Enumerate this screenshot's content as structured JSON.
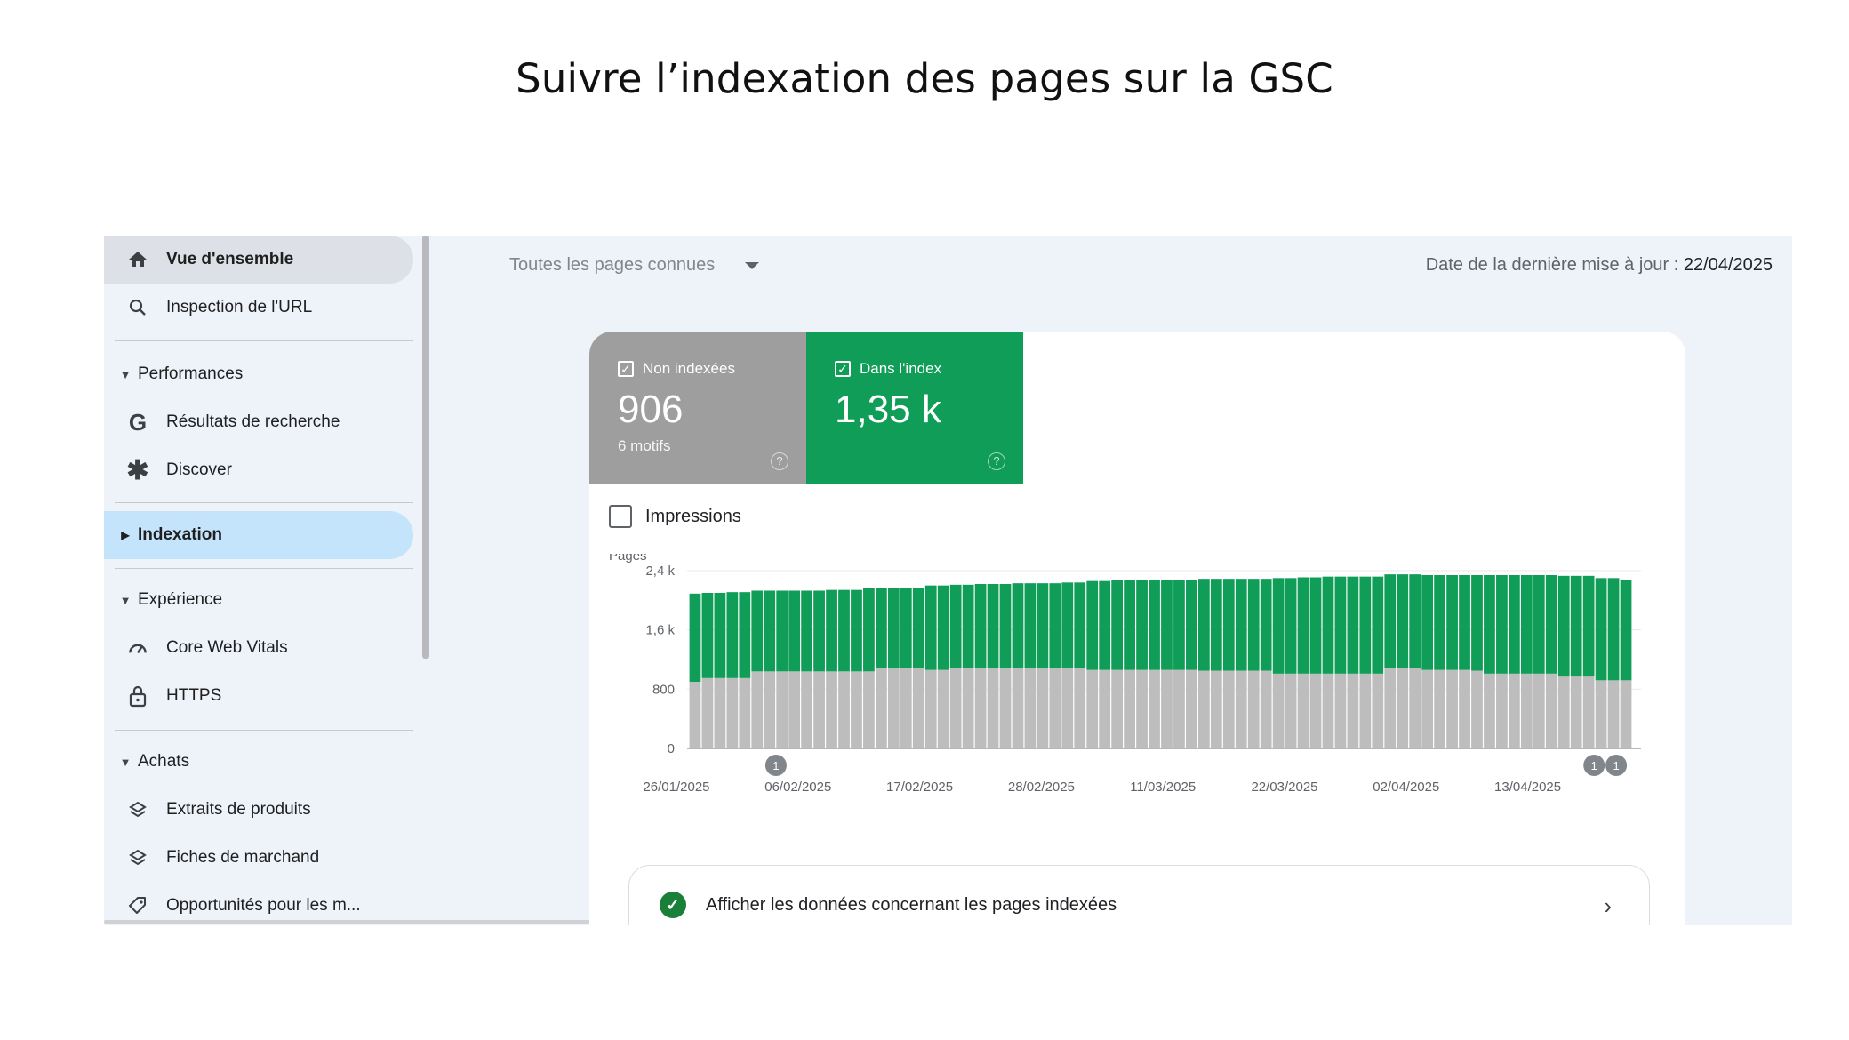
{
  "slide_title": "Suivre l’indexation des pages sur la GSC",
  "sidebar": {
    "overview": "Vue d'ensemble",
    "url_inspection": "Inspection de l'URL",
    "performances": "Performances",
    "search_results": "Résultats de recherche",
    "discover": "Discover",
    "indexation": "Indexation",
    "experience": "Expérience",
    "core_web_vitals": "Core Web Vitals",
    "https": "HTTPS",
    "achats": "Achats",
    "product_snippets": "Extraits de produits",
    "merchant_listings": "Fiches de marchand",
    "opportunities": "Opportunités pour les m..."
  },
  "header": {
    "filter_label": "Toutes les pages connues",
    "updated_label": "Date de la dernière mise à jour :",
    "updated_date": "22/04/2025"
  },
  "tiles": {
    "not_indexed": {
      "label": "Non indexées",
      "value": "906",
      "sub": "6 motifs"
    },
    "indexed": {
      "label": "Dans l'index",
      "value": "1,35 k"
    }
  },
  "impressions_label": "Impressions",
  "link_row": {
    "label": "Afficher les données concernant les pages indexées"
  },
  "colors": {
    "indexed": "#0f9d58",
    "not_indexed": "#bdbdbd",
    "tile_gray": "#9e9e9e",
    "active_nav": "#c3e4fb"
  },
  "chart_data": {
    "type": "bar",
    "stacked": true,
    "ylabel": "Pages",
    "ylim": [
      0,
      2400
    ],
    "y_ticks": [
      "0",
      "800",
      "1,6 k",
      "2,4 k"
    ],
    "y_tick_values": [
      0,
      800,
      1600,
      2400
    ],
    "x_tick_labels": [
      "26/01/2025",
      "06/02/2025",
      "17/02/2025",
      "28/02/2025",
      "11/03/2025",
      "22/03/2025",
      "02/04/2025",
      "13/04/2025"
    ],
    "annotations": [
      {
        "date": "04/02/2025",
        "label": "1"
      },
      {
        "date": "19/04/2025",
        "label": "1"
      },
      {
        "date": "21/04/2025",
        "label": "1"
      }
    ],
    "series": [
      {
        "key": "not_indexed",
        "values": [
          900,
          950,
          950,
          950,
          950,
          1040,
          1040,
          1040,
          1040,
          1040,
          1040,
          1040,
          1040,
          1040,
          1040,
          1080,
          1080,
          1080,
          1080,
          1060,
          1060,
          1080,
          1080,
          1080,
          1080,
          1080,
          1080,
          1080,
          1080,
          1080,
          1080,
          1080,
          1060,
          1060,
          1060,
          1060,
          1060,
          1060,
          1060,
          1060,
          1060,
          1050,
          1050,
          1050,
          1050,
          1050,
          1050,
          1010,
          1010,
          1010,
          1010,
          1010,
          1010,
          1010,
          1010,
          1010,
          1080,
          1080,
          1080,
          1060,
          1060,
          1060,
          1060,
          1050,
          1010,
          1010,
          1010,
          1010,
          1010,
          1010,
          970,
          970,
          970,
          920,
          920,
          920
        ]
      },
      {
        "key": "indexed",
        "values": [
          1190,
          1150,
          1150,
          1160,
          1160,
          1090,
          1090,
          1090,
          1090,
          1090,
          1090,
          1100,
          1100,
          1100,
          1120,
          1080,
          1080,
          1080,
          1080,
          1140,
          1140,
          1130,
          1130,
          1140,
          1140,
          1140,
          1150,
          1150,
          1150,
          1150,
          1160,
          1160,
          1200,
          1200,
          1210,
          1220,
          1220,
          1220,
          1220,
          1220,
          1220,
          1240,
          1240,
          1240,
          1240,
          1240,
          1240,
          1290,
          1290,
          1300,
          1300,
          1310,
          1310,
          1310,
          1310,
          1310,
          1270,
          1270,
          1270,
          1280,
          1280,
          1280,
          1280,
          1290,
          1330,
          1330,
          1330,
          1330,
          1330,
          1330,
          1360,
          1360,
          1360,
          1380,
          1380,
          1360
        ]
      }
    ]
  }
}
